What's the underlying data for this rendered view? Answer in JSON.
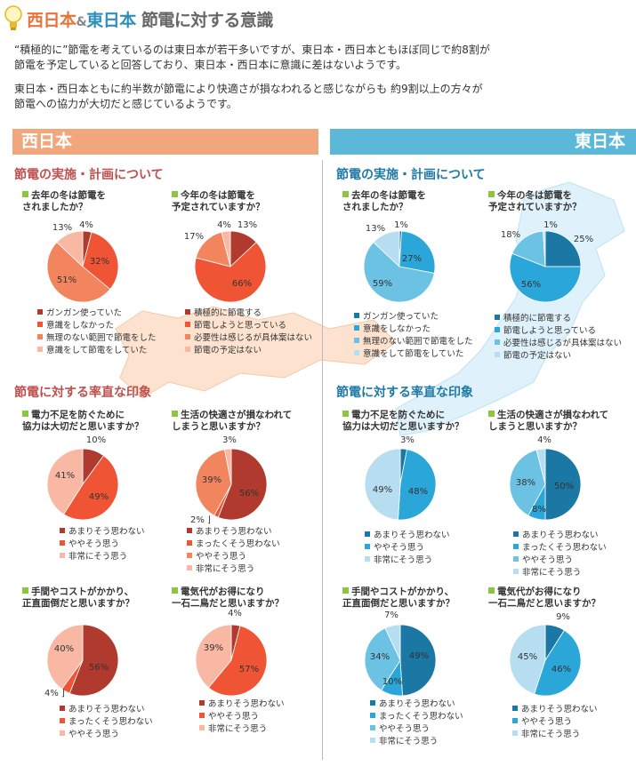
{
  "header": {
    "title_west": "西日本",
    "title_amp": "&",
    "title_east": "東日本",
    "title_rest": " 節電に対する意識"
  },
  "intro": {
    "p1_line1": "“積極的に”節電を考えているのは東日本が若干多いですが、東日本・西日本ともほぼ同じで約8割が",
    "p1_line2": "節電を予定していると回答しており、東日本・西日本に意識に差はないようです。",
    "p2_line1": "東日本・西日本ともに約半数が節電により快適さが損なわれると感じながらも 約9割以上の方々が",
    "p2_line2": "節電への協力が大切だと感じているようです。"
  },
  "bands": {
    "west": "西日本",
    "east": "東日本"
  },
  "sections": {
    "west_top": "節電の実施・計画について",
    "west_bottom": "節電に対する率直な印象",
    "east_top": "節電の実施・計画について",
    "east_bottom": "節電に対する率直な印象"
  },
  "legends": {
    "last_winter": [
      "ガンガン使っていた",
      "意識をしなかった",
      "無理のない範囲で節電をした",
      "意識をして節電をしていた"
    ],
    "this_winter": [
      "積極的に節電する",
      "節電しようと思っている",
      "必要性は感じるが具体案はない",
      "節電の予定はない"
    ],
    "agree3": [
      "あまりそう思わない",
      "ややそう思う",
      "非常にそう思う"
    ],
    "agree4": [
      "あまりそう思わない",
      "まったくそう思わない",
      "ややそう思う",
      "非常にそう思う"
    ],
    "agree3b": [
      "あまりそう思わない",
      "まったくそう思わない",
      "ややそう思う"
    ]
  },
  "notes": {
    "w_comfort": "2%",
    "w_cost": "4%"
  },
  "colors": {
    "w1": "#b03a2e",
    "w2": "#ef5535",
    "w3": "#f2855e",
    "w4": "#f8b8a4",
    "e1": "#1b77a3",
    "e2": "#2aa6d8",
    "e3": "#6bc2e3",
    "e4": "#b7def0"
  },
  "chart_data": [
    {
      "type": "pie",
      "region": "西日本",
      "title": "去年の冬は節電を\nされましたか？",
      "labels": [
        "ガンガン使っていた",
        "意識をしなかった",
        "無理のない範囲で節電をした",
        "意識をして節電をしていた"
      ],
      "values": [
        4,
        32,
        51,
        13
      ],
      "value_labels": [
        "4%",
        "32%",
        "51%",
        "13%"
      ]
    },
    {
      "type": "pie",
      "region": "西日本",
      "title": "今年の冬は節電を\n予定されていますか？",
      "labels": [
        "積極的に節電する",
        "節電しようと思っている",
        "必要性は感じるが具体案はない",
        "節電の予定はない"
      ],
      "values": [
        13,
        66,
        17,
        4
      ],
      "value_labels": [
        "13%",
        "66%",
        "17%",
        "4%"
      ]
    },
    {
      "type": "pie",
      "region": "西日本",
      "title": "電力不足を防ぐために\n協力は大切だと思いますか？",
      "labels": [
        "あまりそう思わない",
        "ややそう思う",
        "非常にそう思う"
      ],
      "values": [
        10,
        49,
        41
      ],
      "value_labels": [
        "10%",
        "49%",
        "41%"
      ]
    },
    {
      "type": "pie",
      "region": "西日本",
      "title": "生活の快適さが損なわれて\nしまうと思いますか？",
      "labels": [
        "あまりそう思わない",
        "まったくそう思わない",
        "ややそう思う",
        "非常にそう思う"
      ],
      "values": [
        56,
        2,
        39,
        3
      ],
      "value_labels": [
        "56%",
        "",
        "39%",
        "3%"
      ]
    },
    {
      "type": "pie",
      "region": "西日本",
      "title": "手間やコストがかかり、\n正直面倒だと思いますか？",
      "labels": [
        "あまりそう思わない",
        "まったくそう思わない",
        "ややそう思う"
      ],
      "values": [
        56,
        4,
        40
      ],
      "value_labels": [
        "56%",
        "",
        "40%"
      ]
    },
    {
      "type": "pie",
      "region": "西日本",
      "title": "電気代がお得になり\n一石二鳥だと思いますか？",
      "labels": [
        "あまりそう思わない",
        "ややそう思う",
        "非常にそう思う"
      ],
      "values": [
        4,
        57,
        39
      ],
      "value_labels": [
        "4%",
        "57%",
        "39%"
      ]
    },
    {
      "type": "pie",
      "region": "東日本",
      "title": "去年の冬は節電を\nされましたか？",
      "labels": [
        "ガンガン使っていた",
        "意識をしなかった",
        "無理のない範囲で節電をした",
        "意識をして節電をしていた"
      ],
      "values": [
        1,
        27,
        59,
        13
      ],
      "value_labels": [
        "1%",
        "27%",
        "59%",
        "13%"
      ]
    },
    {
      "type": "pie",
      "region": "東日本",
      "title": "今年の冬は節電を\n予定されていますか？",
      "labels": [
        "積極的に節電する",
        "節電しようと思っている",
        "必要性は感じるが具体案はない",
        "節電の予定はない"
      ],
      "values": [
        25,
        56,
        18,
        1
      ],
      "value_labels": [
        "25%",
        "56%",
        "18%",
        "1%"
      ]
    },
    {
      "type": "pie",
      "region": "東日本",
      "title": "電力不足を防ぐために\n協力は大切だと思いますか？",
      "labels": [
        "あまりそう思わない",
        "ややそう思う",
        "非常にそう思う"
      ],
      "values": [
        3,
        48,
        49
      ],
      "value_labels": [
        "3%",
        "48%",
        "49%"
      ]
    },
    {
      "type": "pie",
      "region": "東日本",
      "title": "生活の快適さが損なわれて\nしまうと思いますか？",
      "labels": [
        "あまりそう思わない",
        "まったくそう思わない",
        "ややそう思う",
        "非常にそう思う"
      ],
      "values": [
        50,
        8,
        38,
        4
      ],
      "value_labels": [
        "50%",
        "8%",
        "38%",
        "4%"
      ]
    },
    {
      "type": "pie",
      "region": "東日本",
      "title": "手間やコストがかかり、\n正直面倒だと思いますか？",
      "labels": [
        "あまりそう思わない",
        "まったくそう思わない",
        "ややそう思う",
        "非常にそう思う"
      ],
      "values": [
        49,
        10,
        34,
        7
      ],
      "value_labels": [
        "49%",
        "10%",
        "34%",
        "7%"
      ]
    },
    {
      "type": "pie",
      "region": "東日本",
      "title": "電気代がお得になり\n一石二鳥だと思いますか？",
      "labels": [
        "あまりそう思わない",
        "ややそう思う",
        "非常にそう思う"
      ],
      "values": [
        9,
        46,
        45
      ],
      "value_labels": [
        "9%",
        "46%",
        "45%"
      ]
    }
  ]
}
